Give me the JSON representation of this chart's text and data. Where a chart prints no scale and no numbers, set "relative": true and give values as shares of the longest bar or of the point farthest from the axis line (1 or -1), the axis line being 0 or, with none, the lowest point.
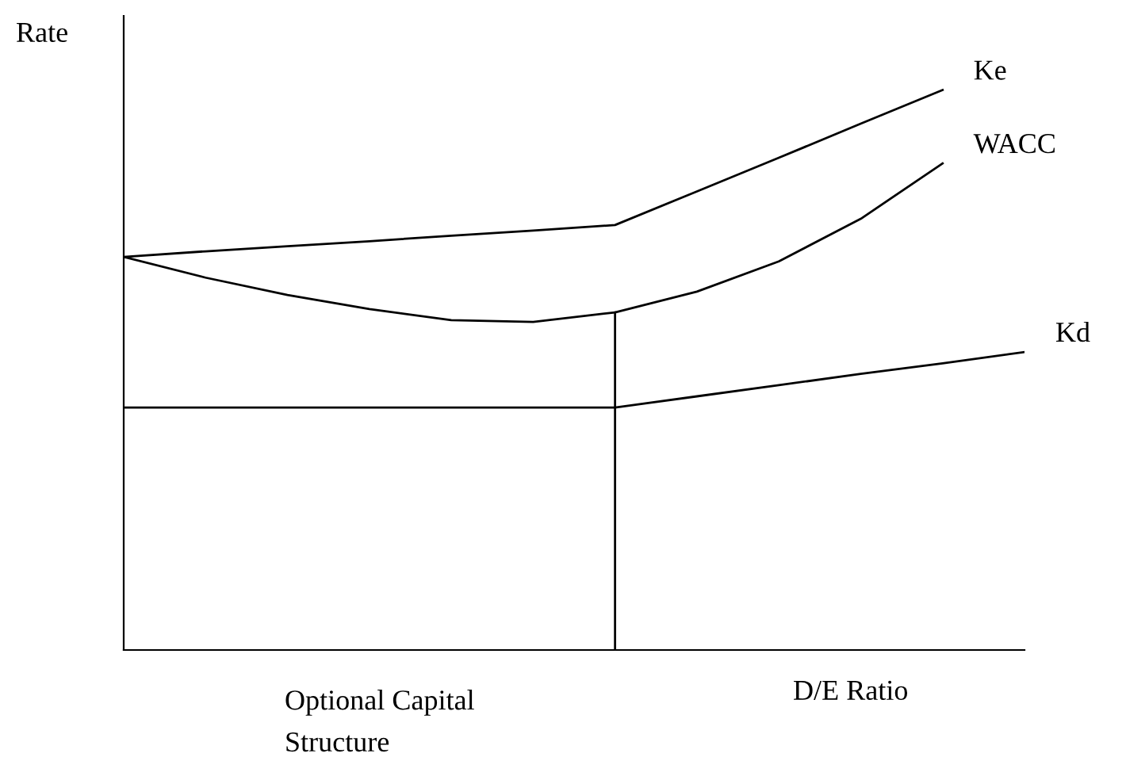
{
  "chart_data": {
    "type": "line",
    "relative": true,
    "ylabel": "Rate",
    "xlabel": "D/E Ratio",
    "annotations": [
      "Optional Capital\nStructure"
    ],
    "legend": false,
    "marker": "none",
    "line_style": "solid",
    "categories": [
      null,
      null,
      null,
      null,
      null,
      null,
      null,
      null,
      null,
      null,
      null,
      null
    ],
    "series": [
      {
        "name": "Ke",
        "color": "#000000",
        "values": [
          0.702,
          0.712,
          0.721,
          0.73,
          0.74,
          0.749,
          0.759,
          0.819,
          0.879,
          0.94,
          1,
          null
        ]
      },
      {
        "name": "WACC",
        "color": "#000000",
        "values": [
          0.702,
          0.665,
          0.634,
          0.609,
          0.589,
          0.586,
          0.603,
          0.64,
          0.694,
          0.77,
          0.869,
          null
        ]
      },
      {
        "name": "Kd",
        "color": "#000000",
        "values": [
          0.433,
          0.433,
          0.433,
          0.433,
          0.433,
          0.433,
          0.433,
          0.453,
          0.473,
          0.493,
          0.512,
          0.532
        ]
      }
    ]
  }
}
